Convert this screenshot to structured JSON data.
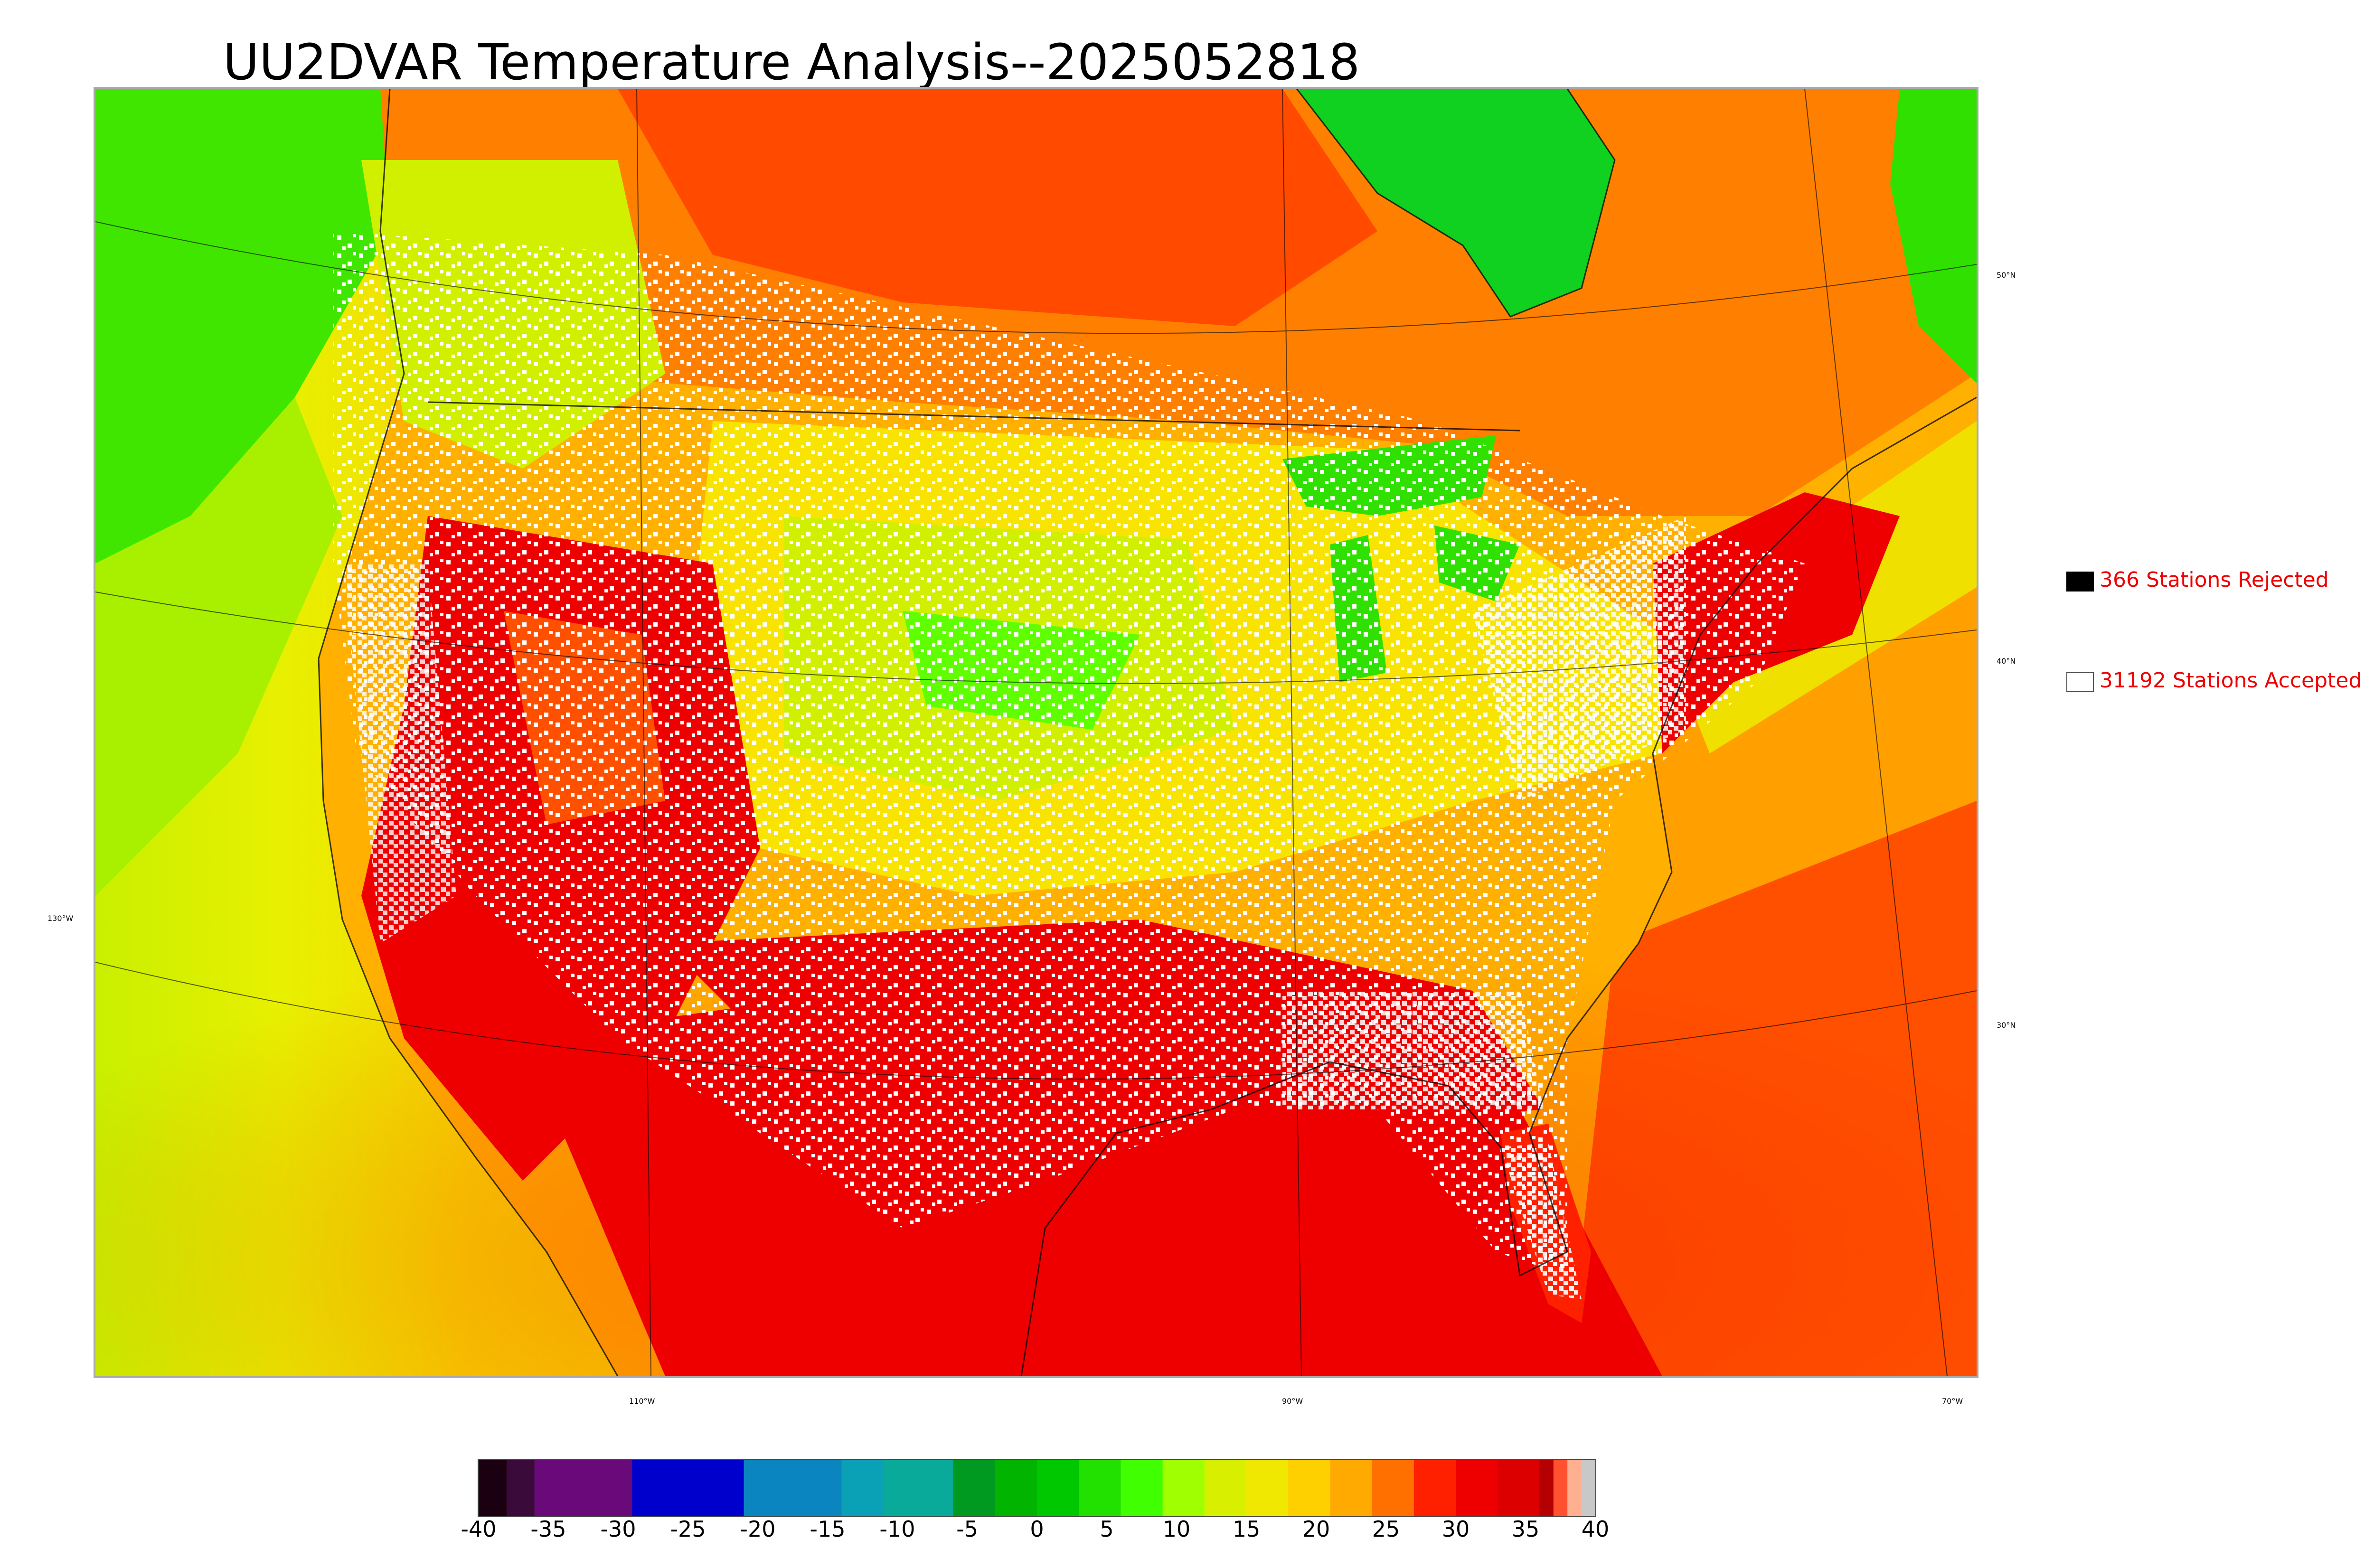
{
  "title": "UU2DVAR Temperature Analysis--2025052818",
  "legend": {
    "rejected": {
      "label": "366 Stations Rejected",
      "box_color": "#000000"
    },
    "accepted": {
      "label": "31192 Stations Accepted",
      "box_color": "#ffffff"
    },
    "text_color": "#ee0000"
  },
  "graticule_labels": {
    "lat": [
      "50°N",
      "40°N",
      "30°N"
    ],
    "lon_left": "130°W",
    "lon_bottom": [
      "110°W",
      "90°W",
      "70°W"
    ]
  },
  "colorbar": {
    "ticks": [
      "-40",
      "-35",
      "-30",
      "-25",
      "-20",
      "-15",
      "-10",
      "-5",
      "0",
      "5",
      "10",
      "15",
      "20",
      "25",
      "30",
      "35",
      "40"
    ],
    "min": -40,
    "max": 40,
    "colors": [
      {
        "from": -40,
        "to": -38,
        "color": "#1a0010"
      },
      {
        "from": -38,
        "to": -36,
        "color": "#3a0a3a"
      },
      {
        "from": -36,
        "to": -29,
        "color": "#6a0a7a"
      },
      {
        "from": -29,
        "to": -21,
        "color": "#0000cc"
      },
      {
        "from": -21,
        "to": -14,
        "color": "#0a85c0"
      },
      {
        "from": -14,
        "to": -11,
        "color": "#0aa0b5"
      },
      {
        "from": -11,
        "to": -6,
        "color": "#0aaa9a"
      },
      {
        "from": -6,
        "to": -3,
        "color": "#009a20"
      },
      {
        "from": -3,
        "to": 0,
        "color": "#00b400"
      },
      {
        "from": 0,
        "to": 3,
        "color": "#00c800"
      },
      {
        "from": 3,
        "to": 6,
        "color": "#22e000"
      },
      {
        "from": 6,
        "to": 9,
        "color": "#40ff00"
      },
      {
        "from": 9,
        "to": 12,
        "color": "#a0ff00"
      },
      {
        "from": 12,
        "to": 15,
        "color": "#d8f000"
      },
      {
        "from": 15,
        "to": 18,
        "color": "#f0e800"
      },
      {
        "from": 18,
        "to": 21,
        "color": "#ffd000"
      },
      {
        "from": 21,
        "to": 24,
        "color": "#ffaa00"
      },
      {
        "from": 24,
        "to": 27,
        "color": "#ff7000"
      },
      {
        "from": 27,
        "to": 30,
        "color": "#ff2000"
      },
      {
        "from": 30,
        "to": 33,
        "color": "#ee0000"
      },
      {
        "from": 33,
        "to": 36,
        "color": "#dd0000"
      },
      {
        "from": 36,
        "to": 37,
        "color": "#b40000"
      },
      {
        "from": 37,
        "to": 38,
        "color": "#ff5030"
      },
      {
        "from": 38,
        "to": 39,
        "color": "#ffb090"
      },
      {
        "from": 39,
        "to": 40,
        "color": "#c8c8c8"
      }
    ]
  }
}
